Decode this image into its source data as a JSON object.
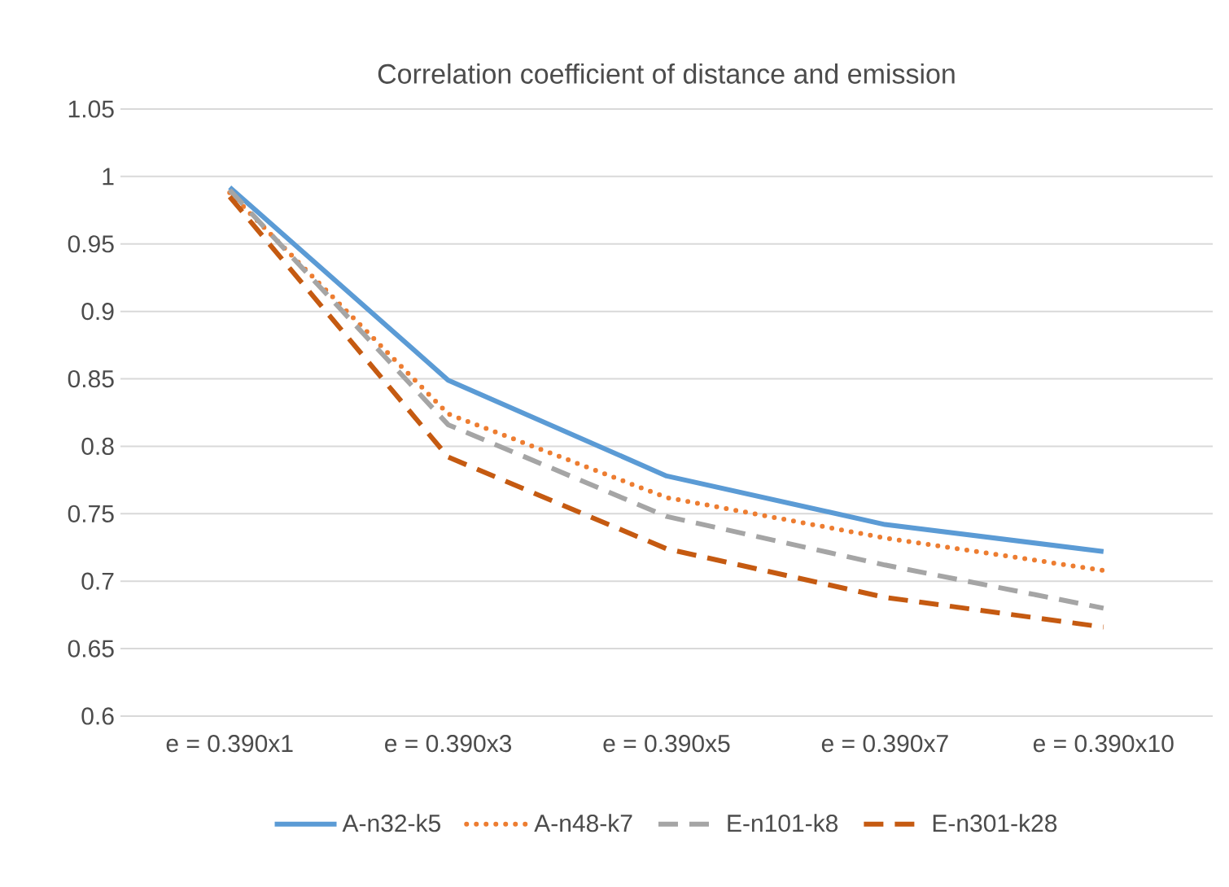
{
  "chart_data": {
    "type": "line",
    "title": "Correlation coefficient of distance and emission",
    "categories": [
      "e = 0.390x1",
      "e = 0.390x3",
      "e = 0.390x5",
      "e = 0.390x7",
      "e = 0.390x10"
    ],
    "series": [
      {
        "name": "A-n32-k5",
        "color": "#5b9bd5",
        "line_style": "solid",
        "values": [
          0.992,
          0.849,
          0.778,
          0.742,
          0.722
        ]
      },
      {
        "name": "A-n48-k7",
        "color": "#ed7d31",
        "line_style": "dotted",
        "values": [
          0.988,
          0.824,
          0.762,
          0.732,
          0.708
        ]
      },
      {
        "name": "E-n101-k8",
        "color": "#a5a5a5",
        "line_style": "dashed",
        "values": [
          0.99,
          0.816,
          0.748,
          0.712,
          0.68
        ]
      },
      {
        "name": "E-n301-k28",
        "color": "#c55a11",
        "line_style": "dashed",
        "values": [
          0.985,
          0.792,
          0.724,
          0.688,
          0.666
        ]
      }
    ],
    "ylim": [
      0.6,
      1.05
    ],
    "yticks": [
      0.6,
      0.65,
      0.7,
      0.75,
      0.8,
      0.85,
      0.9,
      0.95,
      1,
      1.05
    ],
    "grid": "y",
    "legend": "bottom",
    "marker": "none"
  }
}
